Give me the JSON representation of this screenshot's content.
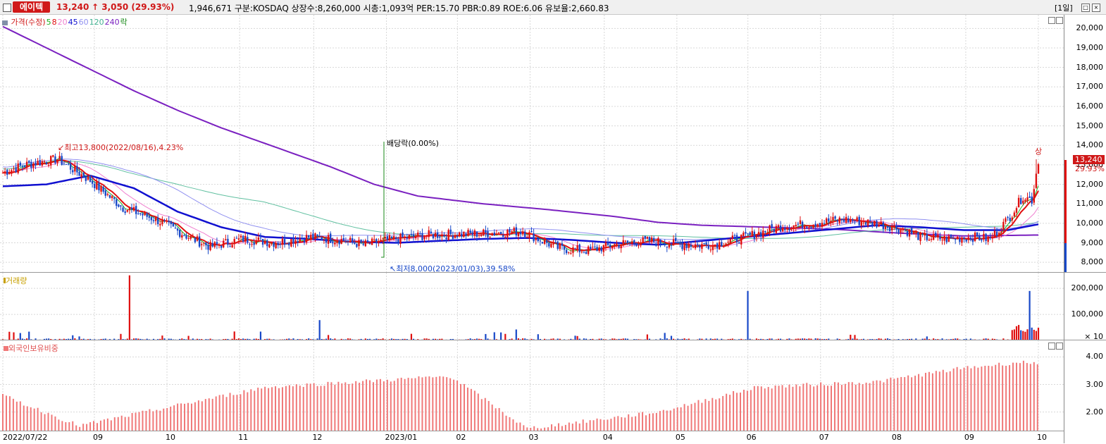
{
  "header": {
    "stock_name": "에이텍",
    "price": "13,240",
    "change_arrow": "↑",
    "change": "3,050",
    "change_pct": "(29.93%)",
    "info": "1,946,671  구분:KOSDAQ 상장수:8,260,000 시총:1,093억  PER:15.70 PBR:0.89 ROE:6.06 유보율:2,660.83",
    "period": "[1일]",
    "restore_glyph": "□",
    "close_glyph": "×"
  },
  "colors": {
    "up": "#e01010",
    "down": "#1848c8",
    "ma5": "#1eb01e",
    "ma8": "#e01010",
    "ma20": "#f080d0",
    "ma45": "#1010d0",
    "ma60": "#9090f0",
    "ma120": "#60c0a0",
    "ma240": "#7a20c0",
    "foreign": "#f07878"
  },
  "price_panel": {
    "legend": [
      {
        "text": "가격(수정)",
        "color": "#d01818"
      },
      {
        "text": "5",
        "color": "#1eb01e"
      },
      {
        "text": "8",
        "color": "#e01010"
      },
      {
        "text": "20",
        "color": "#f080d0"
      },
      {
        "text": "45",
        "color": "#1010d0"
      },
      {
        "text": "60",
        "color": "#9090f0"
      },
      {
        "text": "120",
        "color": "#40b090"
      },
      {
        "text": "240",
        "color": "#7a20c0"
      },
      {
        "text": "락",
        "color": "#1a8a1a"
      }
    ],
    "y_ticks": [
      "20,000",
      "19,000",
      "18,000",
      "17,000",
      "16,000",
      "15,000",
      "14,000",
      "13,000",
      "12,000",
      "11,000",
      "10,000",
      "9,000",
      "8,000"
    ],
    "current_label": "13,240",
    "current_pct": "29.93%",
    "high_annotation": "최고13,800(2022/08/16),4.23%",
    "low_annotation": "최저8,000(2023/01/03),39.58%",
    "dividend_annotation": "배당락(0.00%)",
    "upper_limit": "상"
  },
  "volume_panel": {
    "title": "거래량",
    "y_ticks": [
      "200,000",
      "100,000",
      "× 10"
    ]
  },
  "foreign_panel": {
    "title": "외국인보유비중",
    "y_ticks": [
      "4.00",
      "3.00",
      "2.00"
    ]
  },
  "x_labels": [
    "2022/07/22",
    "09",
    "10",
    "11",
    "12",
    "2023/01",
    "02",
    "03",
    "04",
    "05",
    "06",
    "07",
    "08",
    "09",
    "10"
  ],
  "chart_data": {
    "type": "candlestick",
    "x_range": [
      "2022/07/22",
      "2023/09/26"
    ],
    "ylim_price": [
      7500,
      20700
    ],
    "ylim_volume": [
      0,
      260000
    ],
    "ylim_foreign": [
      1.3,
      4.6
    ],
    "series": [
      {
        "name": "가격(수정)",
        "points": [
          [
            0,
            12600
          ],
          [
            10,
            13000
          ],
          [
            25,
            13300
          ],
          [
            40,
            12200
          ],
          [
            55,
            10800
          ],
          [
            70,
            10200
          ],
          [
            85,
            9300
          ],
          [
            95,
            8800
          ],
          [
            110,
            9200
          ],
          [
            125,
            9000
          ],
          [
            140,
            9300
          ],
          [
            155,
            9150
          ],
          [
            165,
            8900
          ],
          [
            180,
            9200
          ],
          [
            195,
            9400
          ],
          [
            210,
            9450
          ],
          [
            225,
            9500
          ],
          [
            238,
            9600
          ],
          [
            245,
            9200
          ],
          [
            255,
            8700
          ],
          [
            268,
            8600
          ],
          [
            282,
            8950
          ],
          [
            296,
            9100
          ],
          [
            310,
            8900
          ],
          [
            325,
            8900
          ],
          [
            340,
            9300
          ],
          [
            355,
            9800
          ],
          [
            370,
            10000
          ],
          [
            385,
            10200
          ],
          [
            400,
            10000
          ],
          [
            412,
            9700
          ],
          [
            420,
            9300
          ],
          [
            432,
            9200
          ],
          [
            444,
            9300
          ],
          [
            452,
            9200
          ],
          [
            460,
            10200
          ],
          [
            467,
            11400
          ],
          [
            471,
            11200
          ],
          [
            474,
            13240
          ]
        ]
      },
      {
        "name": "45",
        "points": [
          [
            0,
            11900
          ],
          [
            20,
            12000
          ],
          [
            40,
            12450
          ],
          [
            60,
            11800
          ],
          [
            80,
            10600
          ],
          [
            100,
            9800
          ],
          [
            120,
            9300
          ],
          [
            140,
            9200
          ],
          [
            160,
            9050
          ],
          [
            180,
            9000
          ],
          [
            200,
            9100
          ],
          [
            220,
            9200
          ],
          [
            240,
            9250
          ],
          [
            260,
            9150
          ],
          [
            280,
            9000
          ],
          [
            300,
            8900
          ],
          [
            320,
            9100
          ],
          [
            340,
            9300
          ],
          [
            360,
            9500
          ],
          [
            380,
            9700
          ],
          [
            400,
            9900
          ],
          [
            420,
            9800
          ],
          [
            440,
            9650
          ],
          [
            460,
            9650
          ],
          [
            474,
            9950
          ]
        ]
      },
      {
        "name": "240",
        "points": [
          [
            0,
            20100
          ],
          [
            20,
            19000
          ],
          [
            40,
            17900
          ],
          [
            60,
            16800
          ],
          [
            80,
            15800
          ],
          [
            100,
            14900
          ],
          [
            120,
            14100
          ],
          [
            150,
            12900
          ],
          [
            170,
            12000
          ],
          [
            190,
            11400
          ],
          [
            220,
            11000
          ],
          [
            250,
            10700
          ],
          [
            280,
            10350
          ],
          [
            300,
            10050
          ],
          [
            320,
            9900
          ],
          [
            350,
            9800
          ],
          [
            380,
            9700
          ],
          [
            410,
            9500
          ],
          [
            440,
            9350
          ],
          [
            474,
            9400
          ]
        ]
      }
    ],
    "volume_peaks": [
      [
        58,
        250000
      ],
      [
        145,
        78000
      ],
      [
        235,
        42000
      ],
      [
        341,
        190000
      ],
      [
        470,
        190000
      ]
    ],
    "foreign_peaks": [
      [
        0,
        2.6
      ],
      [
        35,
        1.5
      ],
      [
        120,
        2.9
      ],
      [
        205,
        3.3
      ],
      [
        240,
        1.4
      ],
      [
        300,
        2.0
      ],
      [
        345,
        2.9
      ],
      [
        400,
        3.1
      ],
      [
        440,
        3.6
      ],
      [
        465,
        3.8
      ]
    ]
  }
}
